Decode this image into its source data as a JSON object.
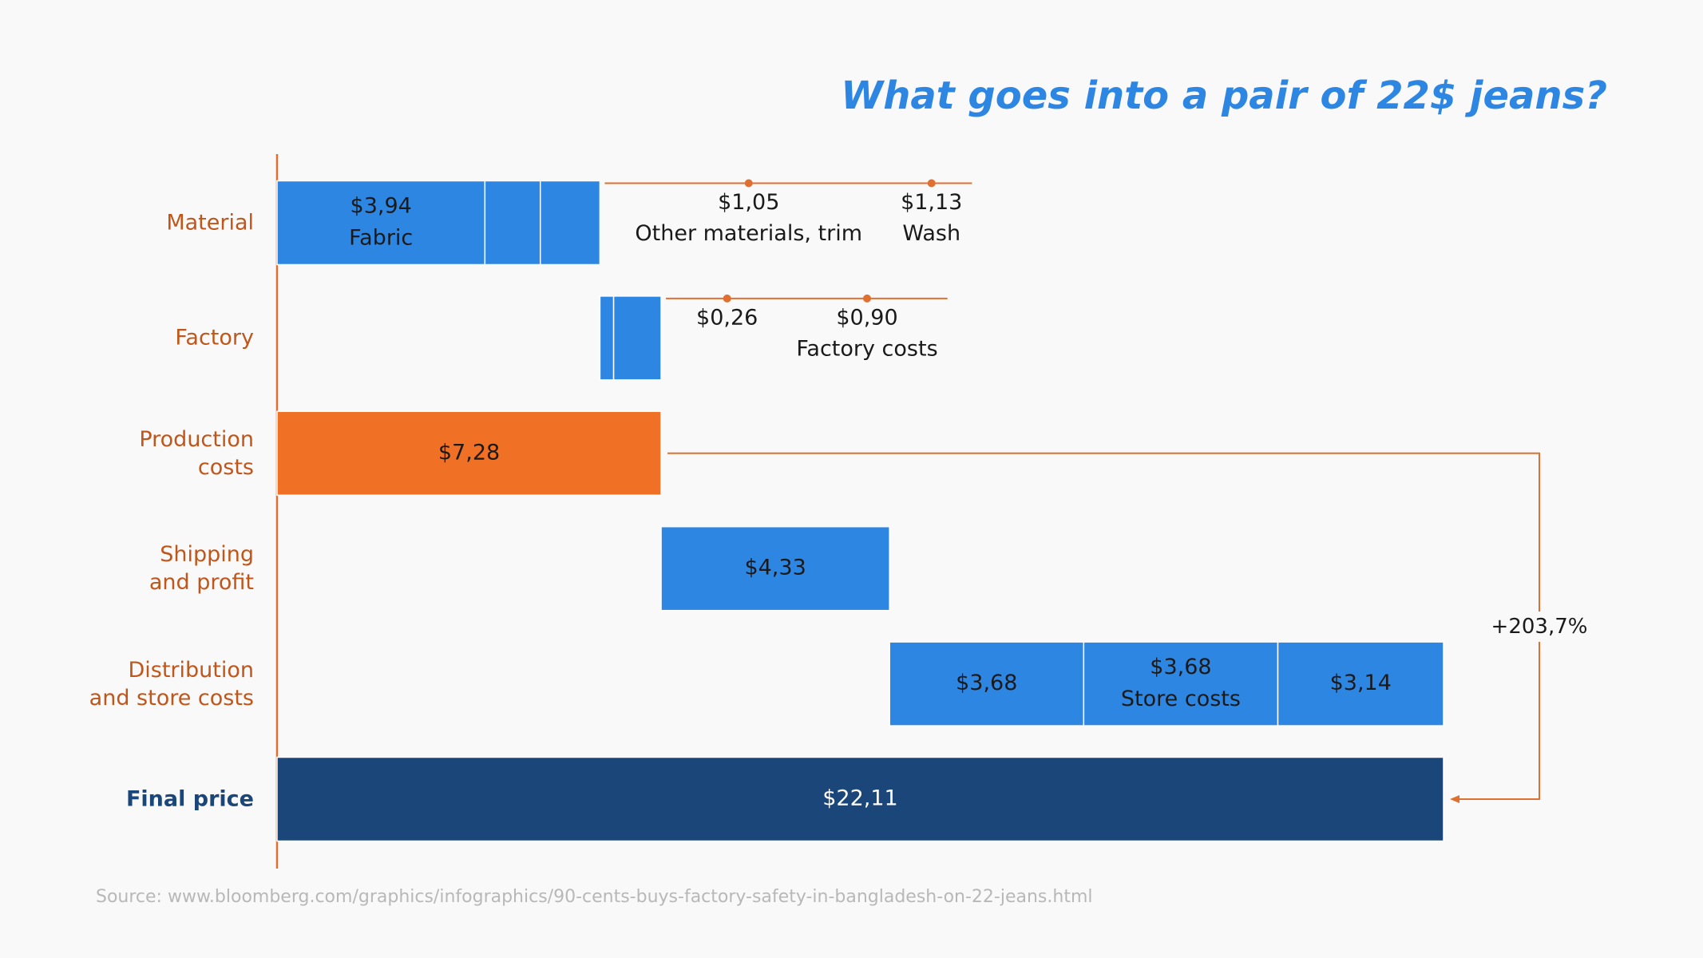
{
  "chart_data": {
    "type": "waterfall",
    "title": "What goes into a pair of 22$ jeans?",
    "source": "Source: www.bloomberg.com/graphics/infographics/90-cents-buys-factory-safety-in-bangladesh-on-22-jeans.html",
    "annotation": "+203,7%",
    "rows": [
      {
        "category": "Material",
        "total": false,
        "color": "#2e86e3",
        "values": [
          3.94,
          1.05,
          1.13
        ],
        "value_labels": [
          "$3,94",
          "$1,05",
          "$1,13"
        ],
        "names": [
          "Fabric",
          "Other materials, trim",
          "Wash"
        ]
      },
      {
        "category": "Factory",
        "total": false,
        "color": "#2e86e3",
        "values": [
          0.26,
          0.9
        ],
        "value_labels": [
          "$0,26",
          "$0,90"
        ],
        "names": [
          null,
          "Factory costs"
        ]
      },
      {
        "category": "Production\ncosts",
        "total": true,
        "color": "#f07025",
        "values": [
          7.28
        ],
        "value_labels": [
          "$7,28"
        ],
        "names": [
          null
        ]
      },
      {
        "category": "Shipping\nand profit",
        "total": false,
        "color": "#2e86e3",
        "values": [
          4.33
        ],
        "value_labels": [
          "$4,33"
        ],
        "names": [
          null
        ]
      },
      {
        "category": "Distribution\nand store costs",
        "total": false,
        "color": "#2e86e3",
        "values": [
          3.68,
          3.68,
          3.14
        ],
        "value_labels": [
          "$3,68",
          "$3,68",
          "$3,14"
        ],
        "names": [
          null,
          "Store costs",
          null
        ]
      },
      {
        "category": "Final price",
        "total": true,
        "color": "#1b4679",
        "values": [
          22.11
        ],
        "value_labels": [
          "$22,11"
        ],
        "names": [
          null
        ]
      }
    ]
  }
}
